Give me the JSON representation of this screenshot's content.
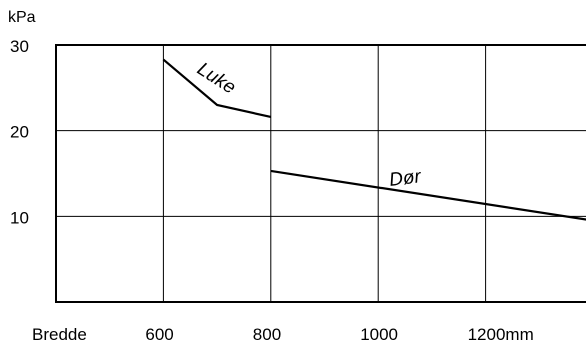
{
  "chart_data": {
    "type": "line",
    "ylabel": "kPa",
    "xlabel": "Bredde",
    "x_tick_labels": [
      "600",
      "800",
      "1000",
      "1200mm"
    ],
    "x_tick_values": [
      600,
      800,
      1000,
      1200
    ],
    "y_tick_labels": [
      "10",
      "20",
      "30"
    ],
    "y_tick_values": [
      10,
      20,
      30
    ],
    "xlim": [
      400,
      1400
    ],
    "ylim": [
      0,
      30
    ],
    "grid": true,
    "series": [
      {
        "name": "Luke",
        "x": [
          600,
          700,
          800
        ],
        "y": [
          28.3,
          23,
          21.6
        ]
      },
      {
        "name": "Dør",
        "x": [
          800,
          1400
        ],
        "y": [
          15.3,
          9.5
        ]
      }
    ]
  }
}
